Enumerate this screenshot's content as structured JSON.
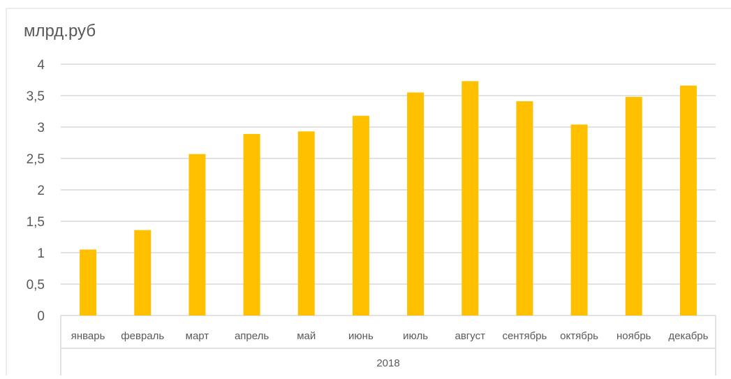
{
  "chart_data": {
    "type": "bar",
    "ylabel": "млрд.руб",
    "group_label": "2018",
    "categories": [
      "январь",
      "февраль",
      "март",
      "апрель",
      "май",
      "июнь",
      "июль",
      "август",
      "сентябрь",
      "октябрь",
      "ноябрь",
      "декабрь"
    ],
    "values": [
      1.05,
      1.36,
      2.57,
      2.89,
      2.93,
      3.18,
      3.55,
      3.73,
      3.41,
      3.04,
      3.48,
      3.66
    ],
    "ylim": [
      0,
      4
    ],
    "yticks": [
      0,
      0.5,
      1,
      1.5,
      2,
      2.5,
      3,
      3.5,
      4
    ],
    "ytick_labels": [
      "0",
      "0,5",
      "1",
      "1,5",
      "2",
      "2,5",
      "3",
      "3,5",
      "4"
    ],
    "grid": true,
    "legend": "none",
    "colors": {
      "bar": "#FFC000",
      "grid": "#D9D9D9",
      "text": "#595959",
      "frame": "#D9D9D9"
    }
  }
}
